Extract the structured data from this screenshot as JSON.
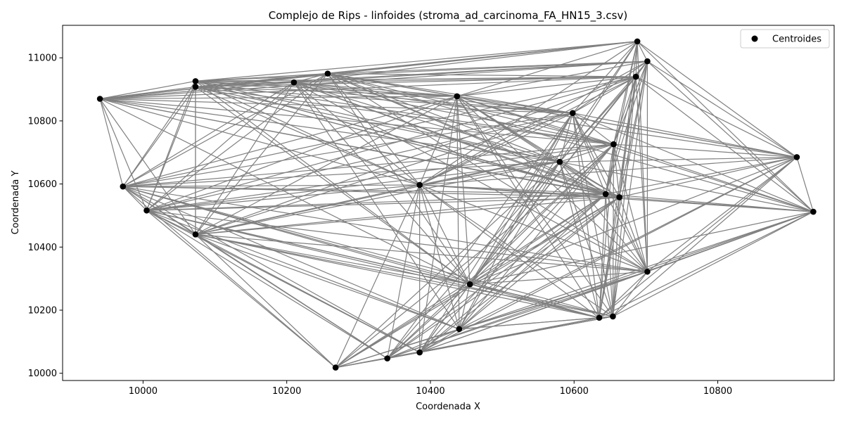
{
  "chart_data": {
    "type": "scatter",
    "title": "Complejo de Rips - linfoides (stroma_ad_carcinoma_FA_HN15_3.csv)",
    "xlabel": "Coordenada X",
    "ylabel": "Coordenada Y",
    "xlim": [
      9888,
      10962
    ],
    "ylim": [
      9977,
      11103
    ],
    "xticks": [
      10000,
      10200,
      10400,
      10600,
      10800
    ],
    "yticks": [
      10000,
      10200,
      10400,
      10600,
      10800,
      11000
    ],
    "legend": {
      "position": "top-right",
      "entries": [
        "Centroides"
      ]
    },
    "colors": {
      "points": "#000000",
      "edges": "#808080",
      "axis": "#000000",
      "legend_border": "#cccccc"
    },
    "points": [
      {
        "x": 9940,
        "y": 10870
      },
      {
        "x": 9972,
        "y": 10592
      },
      {
        "x": 10005,
        "y": 10516
      },
      {
        "x": 10073,
        "y": 10440
      },
      {
        "x": 10073,
        "y": 10926
      },
      {
        "x": 10073,
        "y": 10908
      },
      {
        "x": 10210,
        "y": 10922
      },
      {
        "x": 10257,
        "y": 10950
      },
      {
        "x": 10268,
        "y": 10018
      },
      {
        "x": 10340,
        "y": 10047
      },
      {
        "x": 10385,
        "y": 10066
      },
      {
        "x": 10385,
        "y": 10597
      },
      {
        "x": 10437,
        "y": 10878
      },
      {
        "x": 10440,
        "y": 10140
      },
      {
        "x": 10455,
        "y": 10282
      },
      {
        "x": 10580,
        "y": 10670
      },
      {
        "x": 10598,
        "y": 10825
      },
      {
        "x": 10635,
        "y": 10176
      },
      {
        "x": 10644,
        "y": 10568
      },
      {
        "x": 10654,
        "y": 10180
      },
      {
        "x": 10655,
        "y": 10726
      },
      {
        "x": 10663,
        "y": 10558
      },
      {
        "x": 10686,
        "y": 10940
      },
      {
        "x": 10688,
        "y": 11052
      },
      {
        "x": 10702,
        "y": 10989
      },
      {
        "x": 10702,
        "y": 10322
      },
      {
        "x": 10910,
        "y": 10685
      },
      {
        "x": 10933,
        "y": 10512
      }
    ],
    "edge_threshold": 820
  }
}
